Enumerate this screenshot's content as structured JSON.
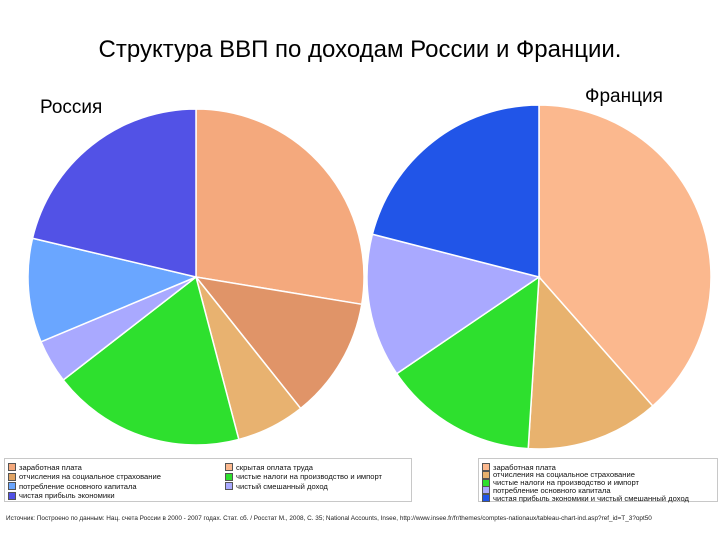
{
  "title": "Структура ВВП по доходам России и Франции.",
  "legend_russia": [
    {
      "label": "заработная плата",
      "color": "#f4a97d"
    },
    {
      "label": "скрытая оплата труда",
      "color": "#fbb88e"
    },
    {
      "label": "отчисления на социальное страхование",
      "color": "#e0a464"
    },
    {
      "label": "чистые налоги на производство и импорт",
      "color": "#2ee02e"
    },
    {
      "label": "потребление основного капитала",
      "color": "#6aa6ff"
    },
    {
      "label": "чистый смешанный доход",
      "color": "#a9a9ff"
    },
    {
      "label": "чистая прибыль экономики",
      "color": "#5252e6"
    }
  ],
  "legend_france": [
    {
      "label": "заработная плата",
      "color": "#fbb88e"
    },
    {
      "label": "отчисления на социальное страхование",
      "color": "#e8b26e"
    },
    {
      "label": "чистые налоги на производство и импорт",
      "color": "#2ee02e"
    },
    {
      "label": "потребление основного капитала",
      "color": "#a9a9ff"
    },
    {
      "label": "чистая прибыль экономики и чистый смешанный доход",
      "color": "#2155e8"
    }
  ],
  "source": "Источник: Построено по данным: Нац. счета России в 2000 - 2007 годах. Стат. сб. / Росстат М., 2008, С. 35; National Accounts, Insee, http://www.insee.fr/fr/themes/comptes-nationaux/tableau-chart-ind.asp?ref_id=T_3?opt50",
  "chart_data": [
    {
      "type": "pie",
      "title": "Россия",
      "labels": [
        "заработная плата",
        "отчисления на социальное страхование",
        "скрытая оплата труда",
        "чистые налоги на производство и импорт",
        "чистый смешанный доход",
        "потребление основного капитала",
        "чистая прибыль экономики"
      ],
      "values": [
        27.6,
        11.7,
        6.6,
        18.6,
        4.2,
        10.0,
        21.3
      ],
      "colors": [
        "#f4a97d",
        "#e09468",
        "#e8b270",
        "#2ee02e",
        "#a9a9ff",
        "#6aa6ff",
        "#5252e6"
      ]
    },
    {
      "type": "pie",
      "title": "Франция",
      "labels": [
        "заработная плата",
        "отчисления на социальное страхование",
        "чистые налоги на производство и импорт",
        "потребление основного капитала",
        "чистая прибыль экономики и чистый смешанный доход"
      ],
      "values": [
        38.5,
        12.5,
        14.5,
        13.5,
        21.0
      ],
      "colors": [
        "#fbb88e",
        "#e8b26e",
        "#2ee02e",
        "#a9a9ff",
        "#2155e8"
      ]
    }
  ]
}
